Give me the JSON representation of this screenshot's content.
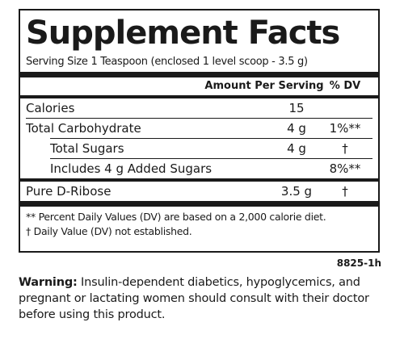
{
  "title": "Supplement Facts",
  "serving": "Serving Size 1 Teaspoon (enclosed 1 level scoop - 3.5 g)",
  "header": {
    "amount": "Amount Per Serving",
    "dv": "% DV"
  },
  "rows": [
    {
      "name": "Calories",
      "amount": "15",
      "dv": ""
    },
    {
      "name": "Total Carbohydrate",
      "amount": "4 g",
      "dv": "1%**"
    },
    {
      "name": "Total Sugars",
      "amount": "4 g",
      "dv": "†"
    },
    {
      "name": "Includes 4 g Added Sugars",
      "amount": "",
      "dv": "8%**"
    },
    {
      "name": "Pure D-Ribose",
      "amount": "3.5 g",
      "dv": "†"
    }
  ],
  "footnotes": [
    "** Percent Daily Values (DV) are based on a 2,000 calorie diet.",
    "† Daily Value (DV) not established."
  ],
  "code": "8825-1h",
  "warning": {
    "label": "Warning:",
    "text": " Insulin-dependent diabetics, hypoglycemics, and pregnant or lactating women should consult with their doctor before using this product."
  }
}
